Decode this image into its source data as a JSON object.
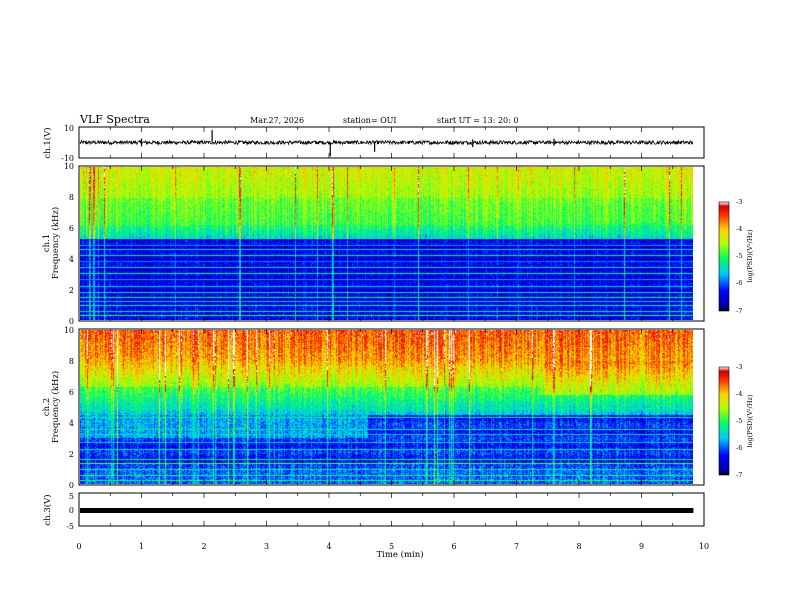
{
  "header": {
    "title": "VLF Spectra",
    "date": "Mar.27, 2026",
    "station": "station= OUI",
    "start": "start  UT  =   13: 20: 0"
  },
  "chart_data": [
    {
      "type": "line",
      "name": "ch1-waveform",
      "ylabel": "ch.1(V)",
      "ylim": [
        -10,
        10
      ],
      "yticks": [
        "10",
        "-10"
      ],
      "series": [
        {
          "name": "ch.1",
          "baseline": 0,
          "noise_amplitude": 1.2
        }
      ],
      "xlim": [
        0,
        10
      ]
    },
    {
      "type": "heatmap",
      "name": "ch1-spectrogram",
      "title": "ch.1",
      "ylabel": "Frequency  (kHz)",
      "ylim": [
        0,
        10
      ],
      "yticks": [
        "0",
        "2",
        "4",
        "6",
        "8",
        "10"
      ],
      "xlim": [
        0,
        10
      ],
      "data_end_min": 9.83,
      "colorbar": {
        "label": "log(PSD)(V²/Hz)",
        "range": [
          -7,
          -3
        ],
        "ticks": [
          "-3",
          "-4",
          "-5",
          "-6",
          "-7"
        ]
      }
    },
    {
      "type": "heatmap",
      "name": "ch2-spectrogram",
      "title": "ch.2",
      "ylabel": "Frequency  (kHz)",
      "ylim": [
        0,
        10
      ],
      "yticks": [
        "0",
        "2",
        "4",
        "6",
        "8",
        "10"
      ],
      "xlim": [
        0,
        10
      ],
      "data_end_min": 9.83,
      "colorbar": {
        "label": "log(PSD)(V²/Hz)",
        "range": [
          -7,
          -3
        ],
        "ticks": [
          "-3",
          "-4",
          "-5",
          "-6",
          "-7"
        ]
      }
    },
    {
      "type": "line",
      "name": "ch3-waveform",
      "ylabel": "ch.3(V)",
      "ylim": [
        -5,
        5
      ],
      "yticks": [
        "5",
        "0",
        "-5"
      ],
      "series": [
        {
          "name": "ch.3",
          "baseline": -0.3,
          "noise_amplitude": 0
        }
      ],
      "xlim": [
        0,
        10
      ],
      "xlabel": "Time  (min)",
      "xticks": [
        "0",
        "1",
        "2",
        "3",
        "4",
        "5",
        "6",
        "7",
        "8",
        "9",
        "10"
      ]
    }
  ]
}
